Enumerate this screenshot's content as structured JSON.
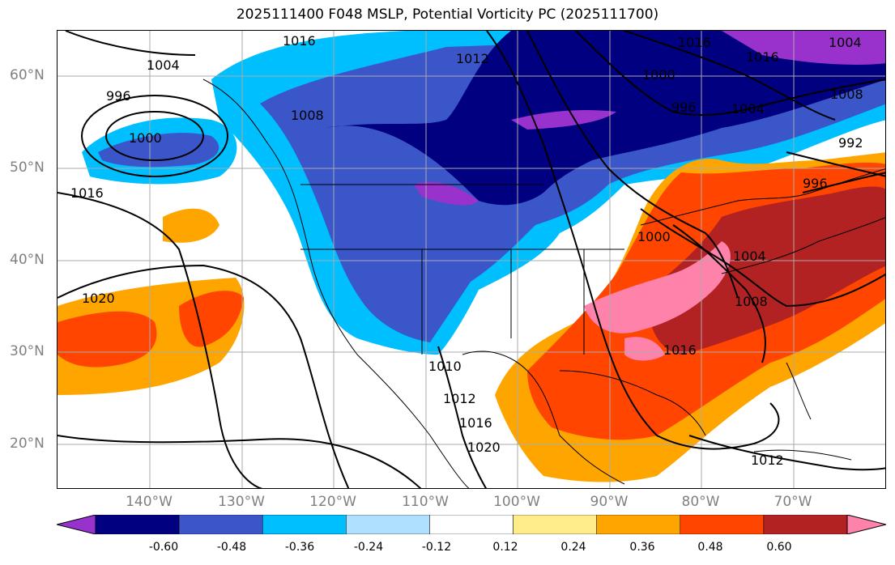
{
  "title": "2025111400 F048 MSLP, Potential Vorticity PC (2025111700)",
  "lat_labels": [
    "60°N",
    "50°N",
    "40°N",
    "30°N",
    "20°N"
  ],
  "lon_labels": [
    "140°W",
    "130°W",
    "120°W",
    "110°W",
    "100°W",
    "90°W",
    "80°W",
    "70°W"
  ],
  "colorbar": {
    "ticks": [
      "-0.60",
      "-0.48",
      "-0.36",
      "-0.24",
      "-0.12",
      "0.12",
      "0.24",
      "0.36",
      "0.48",
      "0.60"
    ],
    "colors": [
      "#9932cc",
      "#000080",
      "#3a56c8",
      "#00bfff",
      "#b0e0ff",
      "#ffffff",
      "#ffec8b",
      "#ffa500",
      "#ff4500",
      "#b22222",
      "#ff82ab"
    ]
  },
  "isobar_labels": [
    "1016",
    "1004",
    "996",
    "1000",
    "1008",
    "1016",
    "1020",
    "1012",
    "1000",
    "996",
    "1004",
    "1016",
    "1004",
    "1008",
    "1016",
    "992",
    "996",
    "1000",
    "1004",
    "1008",
    "1016",
    "1012",
    "1010",
    "1012",
    "1016",
    "1020"
  ],
  "colors": {
    "neg_strong": "#9932cc",
    "neg_dark": "#000080",
    "neg_mid": "#3a56c8",
    "neg_light": "#00bfff",
    "pos_light": "#ffa500",
    "pos_mid": "#ff4500",
    "pos_dark": "#b22222",
    "pos_pink": "#ff82ab"
  }
}
